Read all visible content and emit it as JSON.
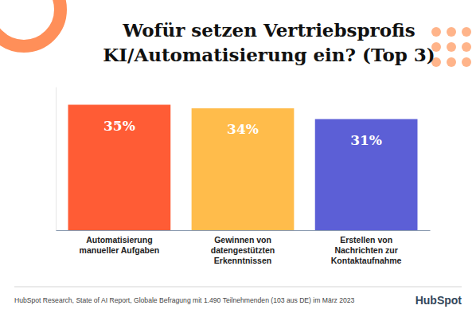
{
  "chart_data": {
    "type": "bar",
    "title": "Wofür setzen Vertriebsprofis KI/Automatisierung ein? (Top 3)",
    "categories": [
      "Automatisierung manueller Aufgaben",
      "Gewinnen von datengestützten Erkenntnissen",
      "Erstellen von Nachrichten zur Kontaktaufnahme"
    ],
    "values": [
      35,
      34,
      31
    ],
    "value_labels": [
      "35%",
      "34%",
      "31%"
    ],
    "colors": [
      "#ff5c35",
      "#ffbc4b",
      "#5c5fd6"
    ],
    "ylim": [
      0,
      40
    ],
    "tick_labels": "x",
    "data_labels": true,
    "grid": false,
    "source": "HubSpot Research, State of AI Report, Globale Befragung mit 1.490 Teilnehmenden (103 aus DE) im März 2023",
    "logo": "HubSpot"
  }
}
